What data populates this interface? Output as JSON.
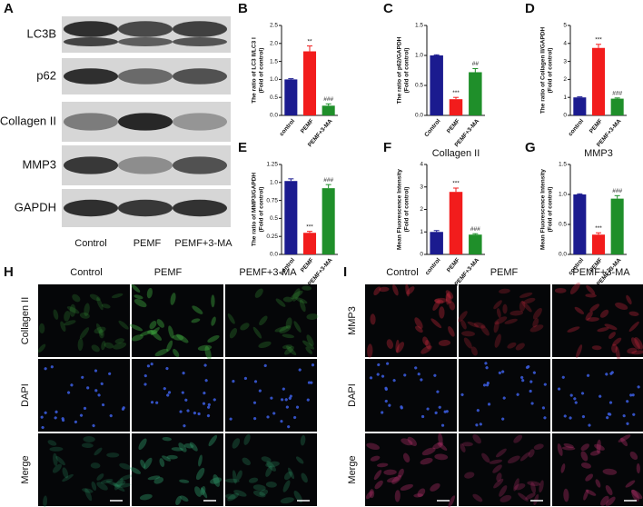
{
  "panel_labels": [
    "A",
    "B",
    "C",
    "D",
    "E",
    "F",
    "G",
    "H",
    "I"
  ],
  "blot": {
    "rows": [
      "LC3B",
      "p62",
      "Collagen II",
      "MMP3",
      "GAPDH"
    ],
    "columns": [
      "Control",
      "PEMF",
      "PEMF+3-MA"
    ]
  },
  "chart_data": [
    {
      "type": "bar",
      "y_label": [
        "The ratio of LC3 II/LC3 I",
        "(Fold of control)"
      ],
      "categories": [
        "control",
        "PEMF",
        "PEMF+3-MA"
      ],
      "values": [
        1.0,
        1.78,
        0.27
      ],
      "errors": [
        0.02,
        0.15,
        0.05
      ],
      "annotations": [
        null,
        "**",
        "###"
      ],
      "colors": [
        "#1b1b8f",
        "#f21c1c",
        "#1f8f2a"
      ],
      "ylim": [
        0,
        2.5
      ],
      "yticks": [
        {
          "value": 0,
          "label": "0.0"
        },
        0.5,
        {
          "value": 1,
          "label": "1.0"
        },
        1.5,
        {
          "value": 2,
          "label": "2.0"
        },
        2.5
      ]
    },
    {
      "type": "bar",
      "y_label": [
        "The ratio of p62/GAPDH",
        "(Fold of control)"
      ],
      "categories": [
        "Control",
        "PEMF",
        "PEMF+3-MA"
      ],
      "values": [
        1.0,
        0.27,
        0.72
      ],
      "errors": [
        0.01,
        0.03,
        0.06
      ],
      "annotations": [
        null,
        "***",
        "##"
      ],
      "colors": [
        "#1b1b8f",
        "#f21c1c",
        "#1f8f2a"
      ],
      "ylim": [
        0,
        1.5
      ],
      "yticks": [
        {
          "value": 0,
          "label": "0.0"
        },
        0.5,
        {
          "value": 1,
          "label": "1.0"
        },
        1.5
      ]
    },
    {
      "type": "bar",
      "y_label": [
        "The ratio of Collagen II/GAPDH",
        "(Fold of control)"
      ],
      "categories": [
        "control",
        "PEMF",
        "PEMF+3-MA"
      ],
      "values": [
        1.0,
        3.75,
        0.93
      ],
      "errors": [
        0.03,
        0.2,
        0.04
      ],
      "annotations": [
        null,
        "***",
        "###"
      ],
      "colors": [
        "#1b1b8f",
        "#f21c1c",
        "#1f8f2a"
      ],
      "ylim": [
        0,
        5
      ],
      "yticks": [
        0,
        1,
        2,
        3,
        4,
        5
      ]
    },
    {
      "type": "bar",
      "y_label": [
        "The ratio of MMP3/GAPDH",
        "(Fold of control)"
      ],
      "categories": [
        "control",
        "PEMF",
        "PEMF+3-MA"
      ],
      "values": [
        1.02,
        0.3,
        0.92
      ],
      "errors": [
        0.03,
        0.02,
        0.05
      ],
      "annotations": [
        null,
        "***",
        "###"
      ],
      "colors": [
        "#1b1b8f",
        "#f21c1c",
        "#1f8f2a"
      ],
      "ylim": [
        0,
        1.25
      ],
      "yticks": [
        {
          "value": 0,
          "label": "0.0"
        },
        0.25,
        0.5,
        0.75,
        {
          "value": 1,
          "label": "1.0"
        },
        1.25
      ]
    },
    {
      "type": "bar",
      "title": "Collagen II",
      "y_label": [
        "Mean Fluorescence Intensity",
        "(Fold of control)"
      ],
      "categories": [
        "control",
        "PEMF",
        "PEMF+3-MA"
      ],
      "values": [
        1.0,
        2.78,
        0.88
      ],
      "errors": [
        0.06,
        0.17,
        0.04
      ],
      "annotations": [
        null,
        "***",
        "###"
      ],
      "colors": [
        "#1b1b8f",
        "#f21c1c",
        "#1f8f2a"
      ],
      "ylim": [
        0,
        4
      ],
      "yticks": [
        0,
        1,
        2,
        3,
        4
      ]
    },
    {
      "type": "bar",
      "title": "MMP3",
      "y_label": [
        "Mean Fluorescence Intensity",
        "(Fold of control)"
      ],
      "categories": [
        "control",
        "PEMF",
        "PEMF+3-MA"
      ],
      "values": [
        1.0,
        0.33,
        0.93
      ],
      "errors": [
        0.01,
        0.03,
        0.05
      ],
      "annotations": [
        null,
        "***",
        "###"
      ],
      "colors": [
        "#1b1b8f",
        "#f21c1c",
        "#1f8f2a"
      ],
      "ylim": [
        0,
        1.5
      ],
      "yticks": [
        {
          "value": 0,
          "label": "0.0"
        },
        0.5,
        {
          "value": 1,
          "label": "1.0"
        },
        1.5
      ]
    }
  ],
  "fluorescence": [
    {
      "columns": [
        "Control",
        "PEMF",
        "PEMF+3-MA"
      ],
      "rows": [
        "Collagen II",
        "DAPI",
        "Merge"
      ]
    },
    {
      "columns": [
        "Control",
        "PEMF",
        "PEMF+3-MA"
      ],
      "rows": [
        "MMP3",
        "DAPI",
        "Merge"
      ]
    }
  ]
}
